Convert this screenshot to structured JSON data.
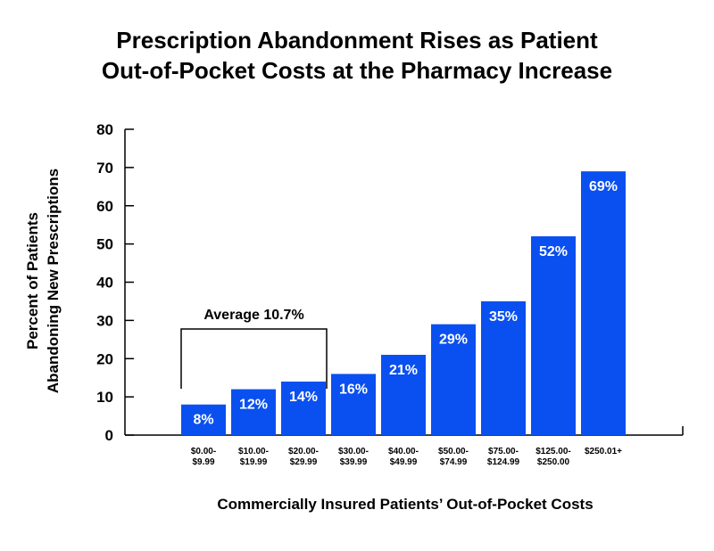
{
  "chart_data": {
    "type": "bar",
    "title_lines": [
      "Prescription Abandonment Rises as Patient",
      "Out-of-Pocket Costs at the Pharmacy Increase"
    ],
    "ylabel_lines": [
      "Percent of Patients",
      "Abandoning New Prescriptions"
    ],
    "xlabel": "Commercially Insured Patients’ Out-of-Pocket Costs",
    "ylim": [
      0,
      80
    ],
    "yticks": [
      0,
      10,
      20,
      30,
      40,
      50,
      60,
      70,
      80
    ],
    "categories": [
      [
        "$0.00-",
        "$9.99"
      ],
      [
        "$10.00-",
        "$19.99"
      ],
      [
        "$20.00-",
        "$29.99"
      ],
      [
        "$30.00-",
        "$39.99"
      ],
      [
        "$40.00-",
        "$49.99"
      ],
      [
        "$50.00-",
        "$74.99"
      ],
      [
        "$75.00-",
        "$124.99"
      ],
      [
        "$125.00-",
        "$250.00"
      ],
      [
        "$250.01+"
      ]
    ],
    "values": [
      8,
      12,
      14,
      16,
      21,
      29,
      35,
      52,
      69
    ],
    "data_labels": [
      "8%",
      "12%",
      "14%",
      "16%",
      "21%",
      "29%",
      "35%",
      "52%",
      "69%"
    ],
    "bar_color": "#0a50f0",
    "grid": false,
    "annotation": {
      "text": "Average 10.7%",
      "from_category": 0,
      "to_category": 2
    }
  }
}
